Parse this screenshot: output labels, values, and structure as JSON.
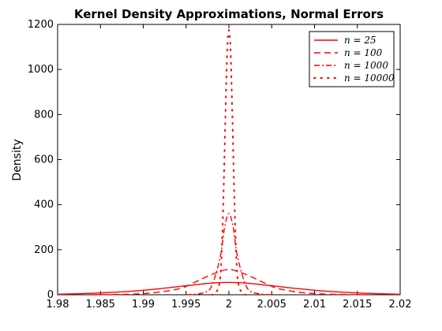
{
  "chart_data": {
    "type": "line",
    "title": "Kernel Density Approximations, Normal Errors",
    "xlabel": "",
    "ylabel": "Density",
    "xlim": [
      1.98,
      2.02
    ],
    "ylim": [
      0,
      1200
    ],
    "xticks": [
      "1.98",
      "1.985",
      "1.99",
      "1.995",
      "2",
      "2.005",
      "2.01",
      "2.015",
      "2.02"
    ],
    "yticks": [
      "0",
      "200",
      "400",
      "600",
      "800",
      "1000",
      "1200"
    ],
    "grid": false,
    "legend_position": "top-right",
    "line_color": "#ff0000",
    "series": [
      {
        "name": "n = 25",
        "style": "solid",
        "points": [
          [
            1.98,
            2
          ],
          [
            1.985,
            8
          ],
          [
            1.99,
            20
          ],
          [
            1.995,
            40
          ],
          [
            1.998,
            52
          ],
          [
            2.0,
            55
          ],
          [
            2.002,
            52
          ],
          [
            2.005,
            40
          ],
          [
            2.01,
            20
          ],
          [
            2.015,
            8
          ],
          [
            2.02,
            2
          ]
        ]
      },
      {
        "name": "n = 100",
        "style": "dashed",
        "points": [
          [
            1.984,
            0
          ],
          [
            1.99,
            5
          ],
          [
            1.994,
            25
          ],
          [
            1.996,
            55
          ],
          [
            1.998,
            90
          ],
          [
            2.0,
            112
          ],
          [
            2.002,
            90
          ],
          [
            2.004,
            55
          ],
          [
            2.006,
            25
          ],
          [
            2.01,
            5
          ],
          [
            2.016,
            0
          ]
        ]
      },
      {
        "name": "n = 1000",
        "style": "dashdot",
        "points": [
          [
            1.995,
            0
          ],
          [
            1.997,
            8
          ],
          [
            1.998,
            40
          ],
          [
            1.999,
            170
          ],
          [
            1.9995,
            300
          ],
          [
            2.0,
            360
          ],
          [
            2.0005,
            300
          ],
          [
            2.001,
            170
          ],
          [
            2.002,
            40
          ],
          [
            2.003,
            8
          ],
          [
            2.005,
            0
          ]
        ]
      },
      {
        "name": "n = 10000",
        "style": "dotted",
        "points": [
          [
            1.998,
            0
          ],
          [
            1.9985,
            10
          ],
          [
            1.999,
            80
          ],
          [
            1.9993,
            350
          ],
          [
            1.9996,
            800
          ],
          [
            1.9998,
            1080
          ],
          [
            2.0,
            1175
          ],
          [
            2.0002,
            1080
          ],
          [
            2.0004,
            800
          ],
          [
            2.0007,
            350
          ],
          [
            2.001,
            80
          ],
          [
            2.0015,
            10
          ],
          [
            2.002,
            0
          ]
        ]
      }
    ]
  }
}
